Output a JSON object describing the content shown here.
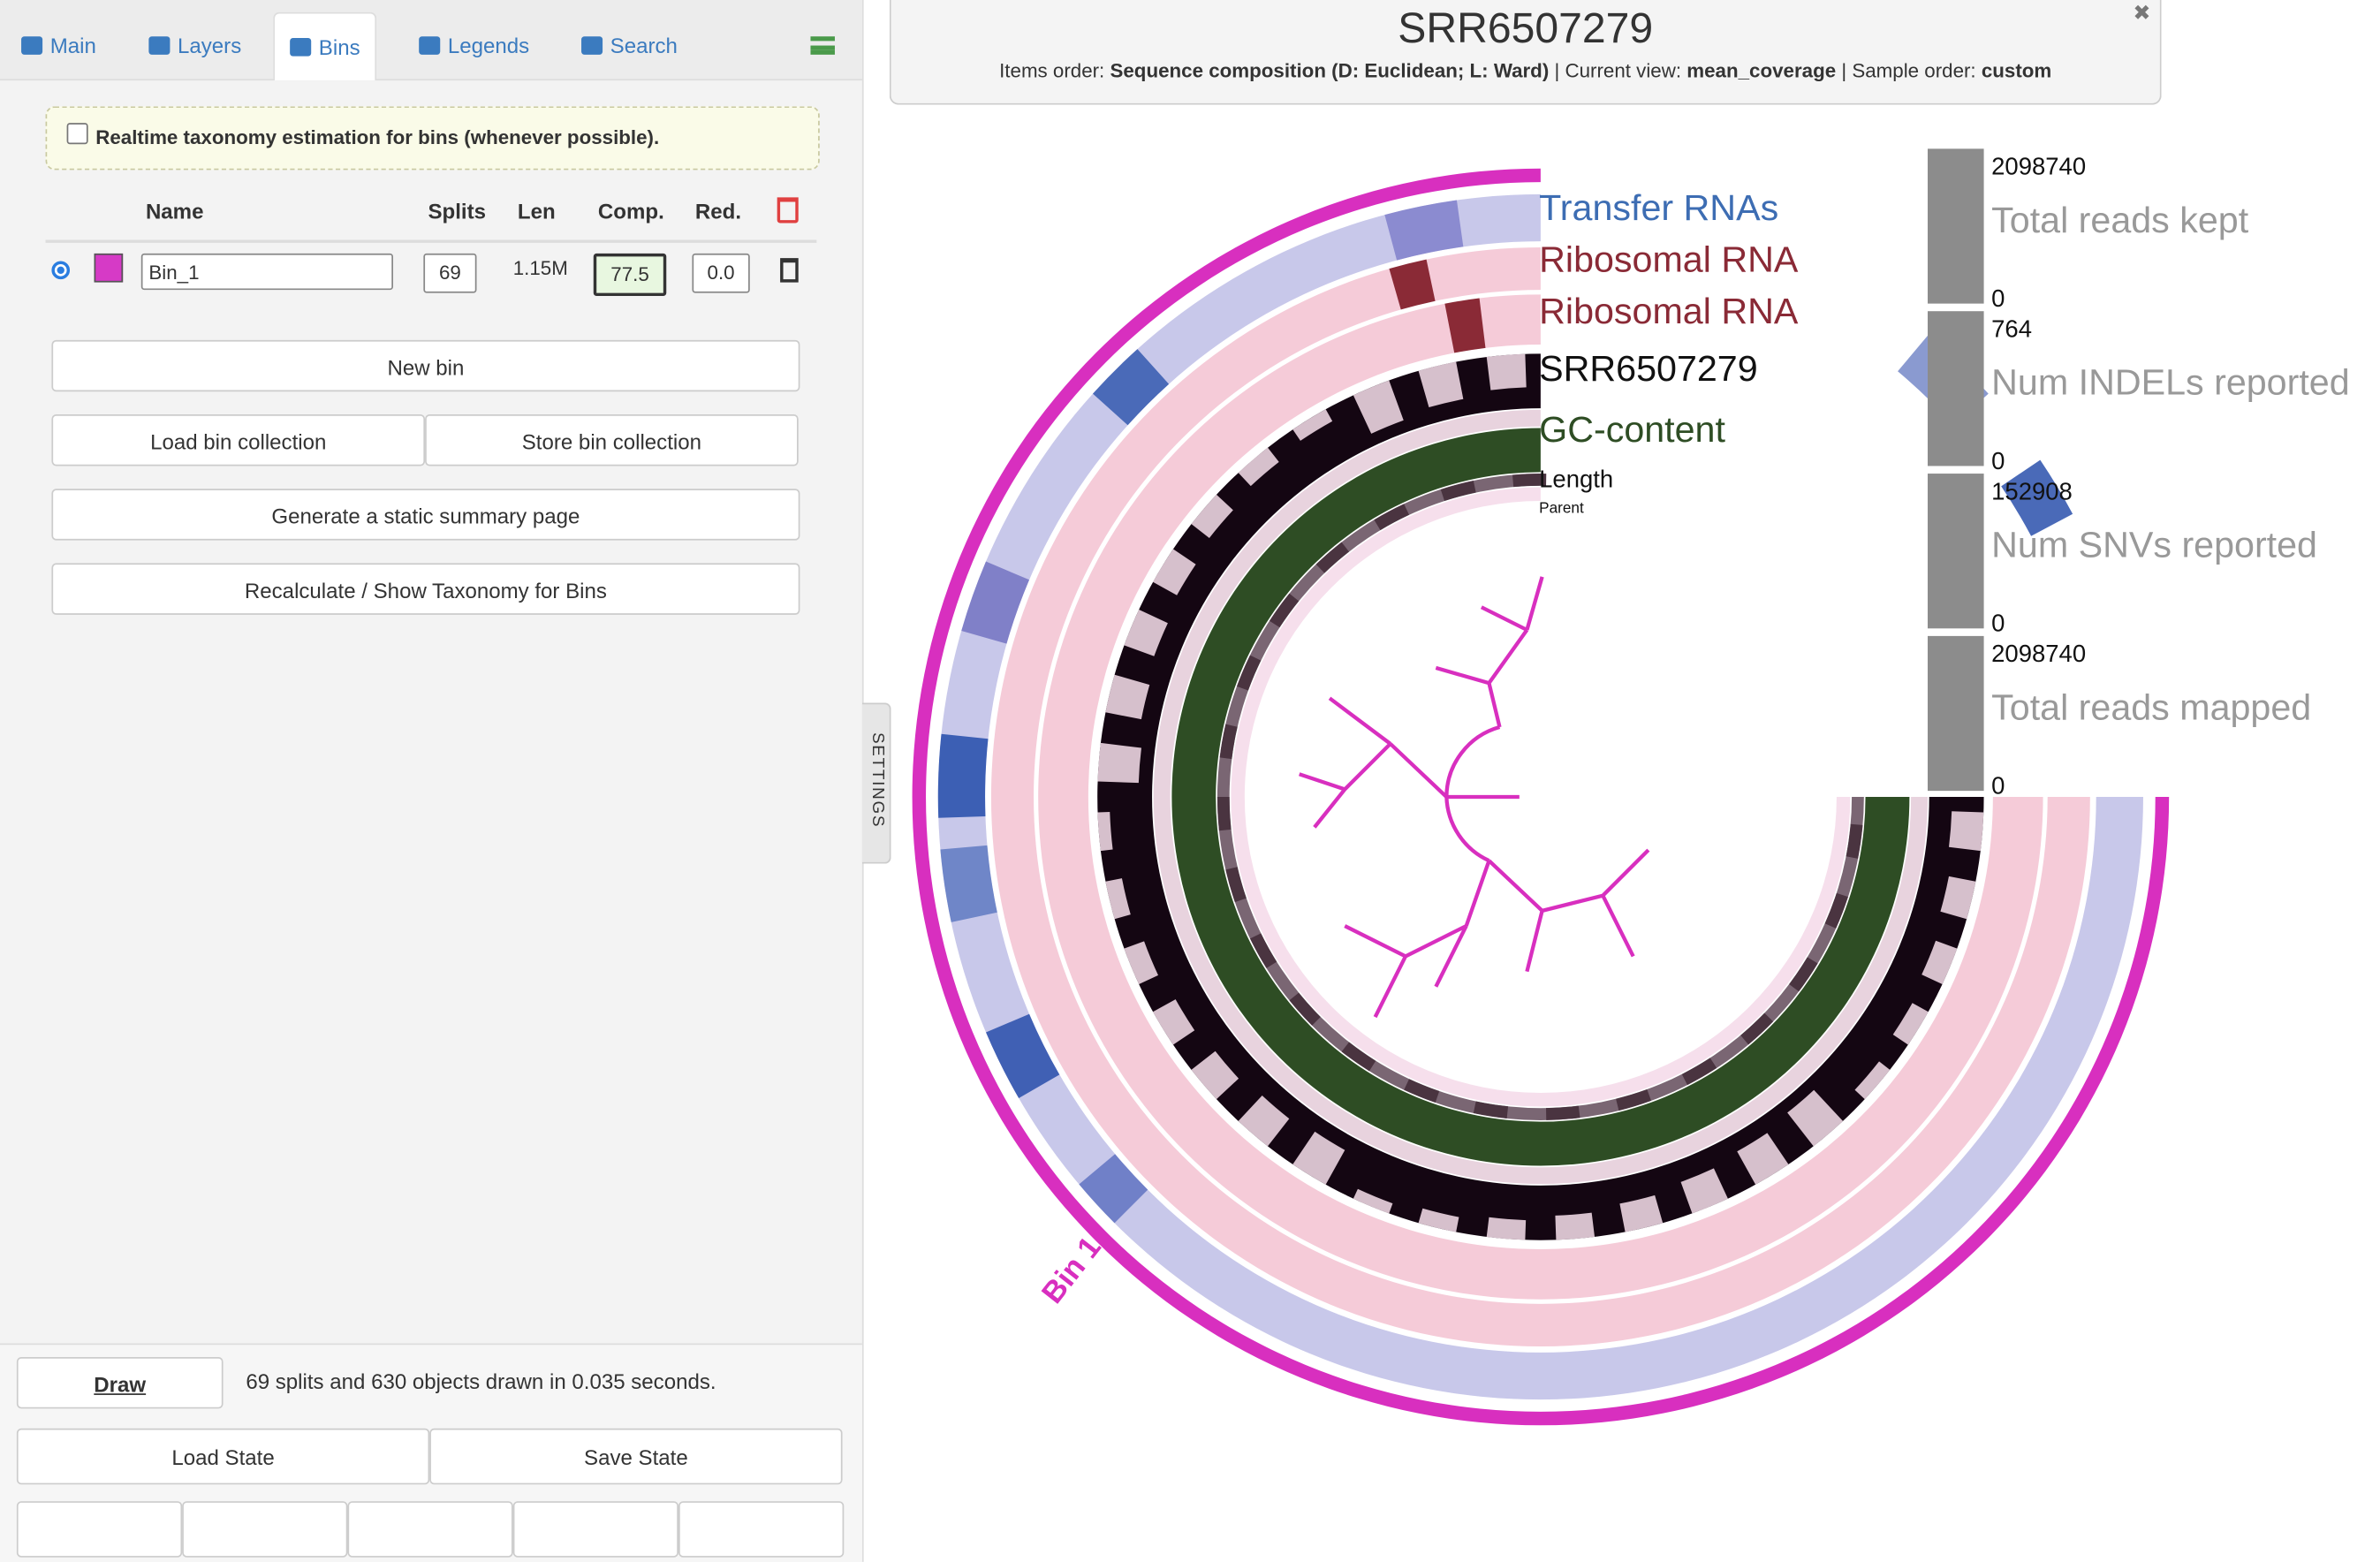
{
  "tabs": [
    "Main",
    "Layers",
    "Bins",
    "Legends",
    "Search"
  ],
  "bins_panel": {
    "realtime_label": "Realtime taxonomy estimation for bins (whenever possible).",
    "columns": [
      "Name",
      "Splits",
      "Len",
      "Comp.",
      "Red."
    ],
    "rows": [
      {
        "name": "Bin_1",
        "splits": "69",
        "len": "1.15M",
        "comp": "77.5",
        "red": "0.0"
      }
    ],
    "buttons": [
      "New bin",
      "Load bin collection",
      "Store bin collection",
      "Generate a static summary page",
      "Recalculate / Show Taxonomy for Bins"
    ]
  },
  "footer": {
    "draw": "Draw",
    "status": "69 splits and 630 objects drawn in 0.035 seconds.",
    "load_state": "Load State",
    "save_state": "Save State"
  },
  "settings_tab": "SETTINGS",
  "display": {
    "title": "SRR6507279",
    "subtitle": [
      {
        "text": "Items order: ",
        "bold": false
      },
      {
        "text": "Sequence composition (D: Euclidean; L: Ward)",
        "bold": true
      },
      {
        "text": " | Current view: ",
        "bold": false
      },
      {
        "text": "mean_coverage",
        "bold": true
      },
      {
        "text": " | Sample order: ",
        "bold": false
      },
      {
        "text": "custom",
        "bold": true
      }
    ],
    "layers": [
      {
        "name": "Transfer RNAs",
        "color": "#3d6db3"
      },
      {
        "name": "Ribosomal RNA",
        "color": "#8a2a36"
      },
      {
        "name": "Ribosomal RNA",
        "color": "#8a2a36"
      },
      {
        "name": "SRR6507279",
        "color": "#111111"
      },
      {
        "name": "GC-content",
        "color": "#2e4d24"
      },
      {
        "name": "Length",
        "color": "#111111"
      },
      {
        "name": "Parent",
        "color": "#111111"
      }
    ],
    "bars": [
      {
        "max": "2098740",
        "label": "Total reads kept",
        "min": "0"
      },
      {
        "max": "764",
        "label": "Num INDELs reported",
        "min": "0"
      },
      {
        "max": "152908",
        "label": "Num SNVs reported",
        "min": "0"
      },
      {
        "max": "2098740",
        "label": "Total reads mapped",
        "min": "0"
      }
    ],
    "bin_label": "Bin 1"
  }
}
